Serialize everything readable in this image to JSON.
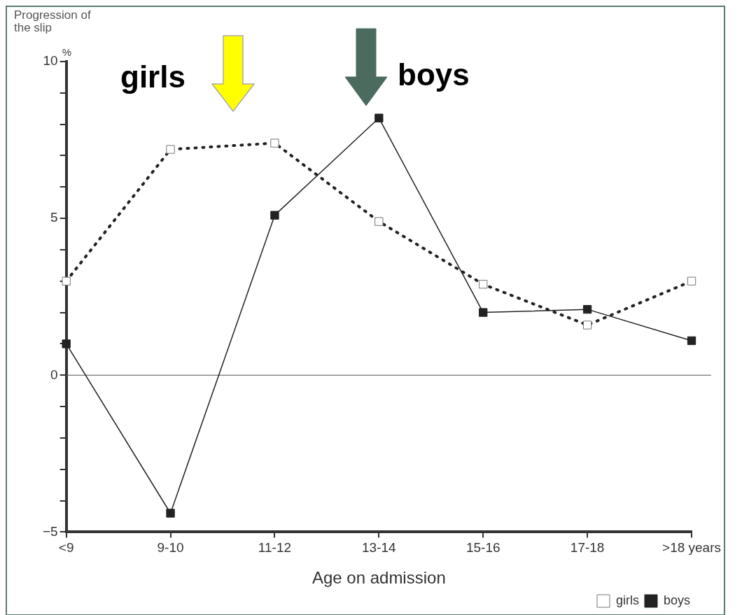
{
  "chart_data": {
    "type": "line",
    "ylabel": "Progression of the slip",
    "xlabel": "Age on admission",
    "categories": [
      "<9",
      "9-10",
      "11-12",
      "13-14",
      "15-16",
      "17-18",
      ">18 years"
    ],
    "series": [
      {
        "name": "girls",
        "color": "#222222",
        "line_style": "dotted",
        "values": [
          3.0,
          7.2,
          7.4,
          4.9,
          2.9,
          1.6,
          3.0
        ]
      },
      {
        "name": "boys",
        "color": "#222222",
        "line_style": "solid",
        "values": [
          1.0,
          -4.4,
          5.1,
          8.2,
          2.0,
          2.1,
          1.1
        ]
      }
    ],
    "ylim": [
      -5,
      10
    ],
    "yticks": [
      -5,
      {
        "value": -4,
        "label": null
      },
      {
        "value": -3,
        "label": null
      },
      {
        "value": -2,
        "label": null
      },
      {
        "value": -1,
        "label": null
      },
      0,
      {
        "value": 1,
        "label": null
      },
      {
        "value": 2,
        "label": null
      },
      {
        "value": 3,
        "label": null
      },
      {
        "value": 4,
        "label": null
      },
      5,
      {
        "value": 6,
        "label": null
      },
      {
        "value": 7,
        "label": null
      },
      {
        "value": 8,
        "label": null
      },
      {
        "value": 9,
        "label": null
      },
      10
    ],
    "ref_lines": [
      {
        "axis": "y",
        "value": 0,
        "color": "#555555"
      }
    ],
    "annotations": [
      "girls",
      "boys",
      "%"
    ],
    "marker": "square",
    "grid": false,
    "legend": "bottom right"
  }
}
